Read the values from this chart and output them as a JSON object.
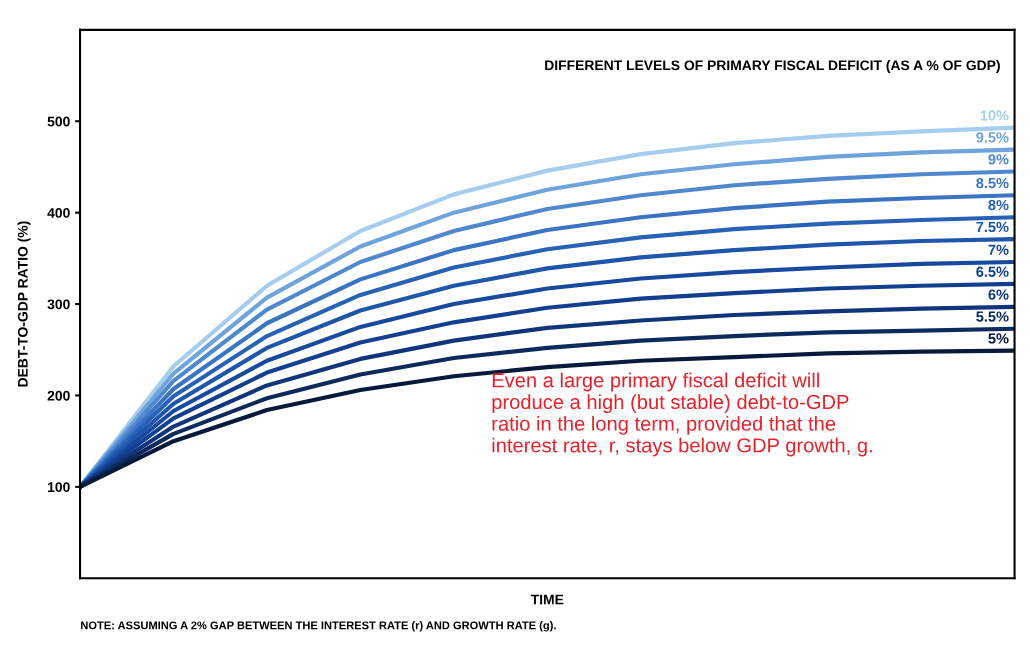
{
  "chart_data": {
    "type": "line",
    "title": "DIFFERENT LEVELS OF PRIMARY FISCAL DEFICIT (AS A % OF GDP)",
    "xlabel": "TIME",
    "ylabel": "DEBT-TO-GDP RATIO (%)",
    "categories": [
      null,
      null,
      null,
      null,
      null,
      null,
      null,
      null,
      null,
      null,
      null
    ],
    "ylim": [
      0,
      600
    ],
    "yticks": [
      100,
      200,
      300,
      400,
      500
    ],
    "grid": false,
    "legend": false,
    "marker": "none",
    "line_style": "solid",
    "series": [
      {
        "name": "10%",
        "color": "#a6cdee",
        "values": [
          100,
          232,
          320,
          380,
          420,
          446,
          464,
          476,
          484,
          489,
          493
        ]
      },
      {
        "name": "9.5%",
        "color": "#6fa3dc",
        "values": [
          100,
          224,
          307,
          363,
          400,
          425,
          442,
          453,
          461,
          466,
          469
        ]
      },
      {
        "name": "9%",
        "color": "#5088cf",
        "values": [
          100,
          216,
          294,
          346,
          380,
          404,
          419,
          430,
          437,
          442,
          445
        ]
      },
      {
        "name": "8.5%",
        "color": "#3a74c2",
        "values": [
          100,
          207,
          279,
          327,
          359,
          381,
          395,
          405,
          412,
          416,
          419
        ]
      },
      {
        "name": "8%",
        "color": "#2862b6",
        "values": [
          100,
          199,
          265,
          310,
          340,
          360,
          373,
          382,
          388,
          392,
          395
        ]
      },
      {
        "name": "7.5%",
        "color": "#1d56ab",
        "values": [
          100,
          191,
          252,
          293,
          320,
          339,
          351,
          359,
          365,
          369,
          371
        ]
      },
      {
        "name": "7%",
        "color": "#174a9e",
        "values": [
          100,
          183,
          238,
          275,
          300,
          317,
          328,
          335,
          340,
          344,
          346
        ]
      },
      {
        "name": "6.5%",
        "color": "#123f8f",
        "values": [
          100,
          175,
          225,
          258,
          280,
          296,
          306,
          312,
          317,
          320,
          322
        ]
      },
      {
        "name": "6%",
        "color": "#10357a",
        "values": [
          100,
          166,
          211,
          240,
          260,
          274,
          282,
          288,
          292,
          295,
          297
        ]
      },
      {
        "name": "5.5%",
        "color": "#0c2a5c",
        "values": [
          100,
          158,
          197,
          223,
          241,
          252,
          260,
          265,
          269,
          271,
          273
        ]
      },
      {
        "name": "5%",
        "color": "#081a3c",
        "values": [
          100,
          150,
          184,
          206,
          221,
          231,
          238,
          242,
          246,
          248,
          249
        ]
      }
    ],
    "annotations": [
      {
        "text": "Even a large primary fiscal deficit will\nproduce a high (but stable) debt-to-GDP\nratio in the long term, provided that the\ninterest rate, r, stays below GDP growth, g."
      },
      "NOTE: ASSUMING A 2% GAP BETWEEN THE INTEREST RATE (r) AND GROWTH RATE (g)."
    ]
  }
}
